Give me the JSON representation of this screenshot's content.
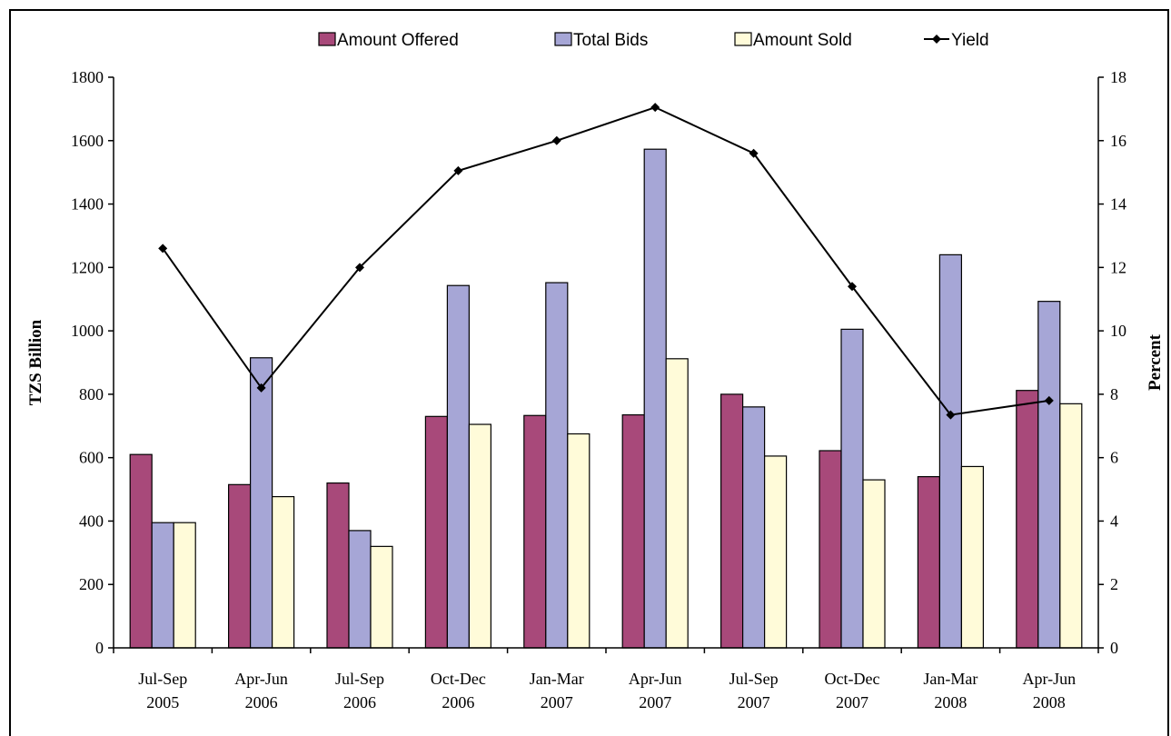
{
  "chart_data": {
    "type": "bar",
    "title": "",
    "categories": [
      [
        "Jul-Sep",
        "2005"
      ],
      [
        "Apr-Jun",
        "2006"
      ],
      [
        "Jul-Sep",
        "2006"
      ],
      [
        "Oct-Dec",
        "2006"
      ],
      [
        "Jan-Mar",
        "2007"
      ],
      [
        "Apr-Jun",
        "2007"
      ],
      [
        "Jul-Sep",
        "2007"
      ],
      [
        "Oct-Dec",
        "2007"
      ],
      [
        "Jan-Mar",
        "2008"
      ],
      [
        "Apr-Jun",
        "2008"
      ]
    ],
    "series": [
      {
        "name": "Amount Offered",
        "type": "bar",
        "axis": "left",
        "color": "#A8497A",
        "values": [
          610,
          515,
          520,
          730,
          733,
          735,
          800,
          622,
          540,
          812
        ]
      },
      {
        "name": "Total Bids",
        "type": "bar",
        "axis": "left",
        "color": "#A6A6D6",
        "values": [
          395,
          915,
          370,
          1143,
          1152,
          1573,
          760,
          1005,
          1240,
          1093
        ]
      },
      {
        "name": "Amount Sold",
        "type": "bar",
        "axis": "left",
        "color": "#FFFBD9",
        "values": [
          395,
          477,
          320,
          705,
          675,
          912,
          605,
          530,
          572,
          770
        ]
      },
      {
        "name": "Yield",
        "type": "line",
        "axis": "right",
        "color": "#000000",
        "values": [
          12.6,
          8.2,
          12.0,
          15.05,
          16.0,
          17.05,
          15.6,
          11.4,
          7.35,
          7.8
        ]
      }
    ],
    "ylabel": "TZS Billion",
    "ylim": [
      0,
      1800
    ],
    "yticks": [
      0,
      200,
      400,
      600,
      800,
      1000,
      1200,
      1400,
      1600,
      1800
    ],
    "y2label": "Percent",
    "y2lim": [
      0,
      18
    ],
    "y2ticks": [
      0,
      2,
      4,
      6,
      8,
      10,
      12,
      14,
      16,
      18
    ],
    "grid": false,
    "legend": "top"
  }
}
